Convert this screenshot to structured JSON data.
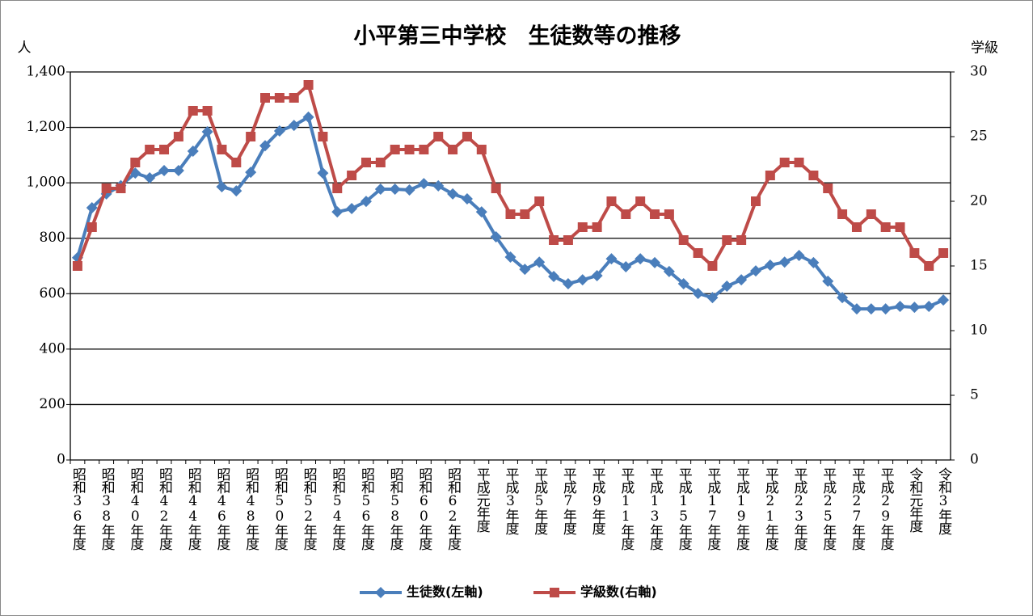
{
  "chart_data": {
    "type": "line",
    "title": "小平第三中学校　生徒数等の推移",
    "y_label": "人",
    "y2_label": "学級",
    "categories": [
      "昭和36年度",
      null,
      "昭和38年度",
      null,
      "昭和40年度",
      null,
      "昭和42年度",
      null,
      "昭和44年度",
      null,
      "昭和46年度",
      null,
      "昭和48年度",
      null,
      "昭和50年度",
      null,
      "昭和52年度",
      null,
      "昭和54年度",
      null,
      "昭和56年度",
      null,
      "昭和58年度",
      null,
      "昭和60年度",
      null,
      "昭和62年度",
      null,
      "平成元年度",
      null,
      "平成3年度",
      null,
      "平成5年度",
      null,
      "平成7年度",
      null,
      "平成9年度",
      null,
      "平成11年度",
      null,
      "平成13年度",
      null,
      "平成15年度",
      null,
      "平成17年度",
      null,
      "平成19年度",
      null,
      "平成21年度",
      null,
      "平成23年度",
      null,
      "平成25年度",
      null,
      "平成27年度",
      null,
      "平成29年度",
      null,
      "令和元年度",
      null,
      "令和3年度"
    ],
    "series": [
      {
        "name": "生徒数(左軸)",
        "color": "#4a7ebb",
        "marker": "diamond",
        "values": [
          730,
          910,
          960,
          990,
          1035,
          1018,
          1044,
          1044,
          1114,
          1184,
          986,
          971,
          1038,
          1134,
          1187,
          1207,
          1237,
          1035,
          895,
          907,
          933,
          977,
          977,
          974,
          997,
          989,
          960,
          942,
          895,
          805,
          732,
          688,
          714,
          662,
          636,
          650,
          665,
          726,
          697,
          726,
          712,
          680,
          636,
          601,
          586,
          627,
          650,
          682,
          703,
          714,
          738,
          712,
          645,
          586,
          545,
          545,
          545,
          554,
          551,
          554,
          577
        ]
      },
      {
        "name": "学級数(右軸)",
        "color": "#be4b48",
        "marker": "square",
        "axis": "y2",
        "values": [
          15,
          18,
          21,
          21,
          23,
          24,
          24,
          25,
          27,
          27,
          24,
          23,
          25,
          28,
          28,
          28,
          29,
          25,
          21,
          22,
          23,
          23,
          24,
          24,
          24,
          25,
          24,
          25,
          24,
          21,
          19,
          19,
          20,
          17,
          17,
          18,
          18,
          20,
          19,
          20,
          19,
          19,
          17,
          16,
          15,
          17,
          17,
          20,
          22,
          23,
          23,
          22,
          21,
          19,
          18,
          19,
          18,
          18,
          16,
          15,
          16
        ]
      }
    ],
    "ylim": [
      0,
      1400
    ],
    "yticks": [
      0,
      200,
      400,
      600,
      800,
      {
        "value": 1000,
        "label": "1,000"
      },
      {
        "value": 1200,
        "label": "1,200"
      },
      {
        "value": 1400,
        "label": "1,400"
      }
    ],
    "y2lim": [
      0,
      30
    ],
    "y2ticks": [
      0,
      5,
      10,
      15,
      20,
      25,
      30
    ],
    "grid": true,
    "legend": "bottom"
  }
}
